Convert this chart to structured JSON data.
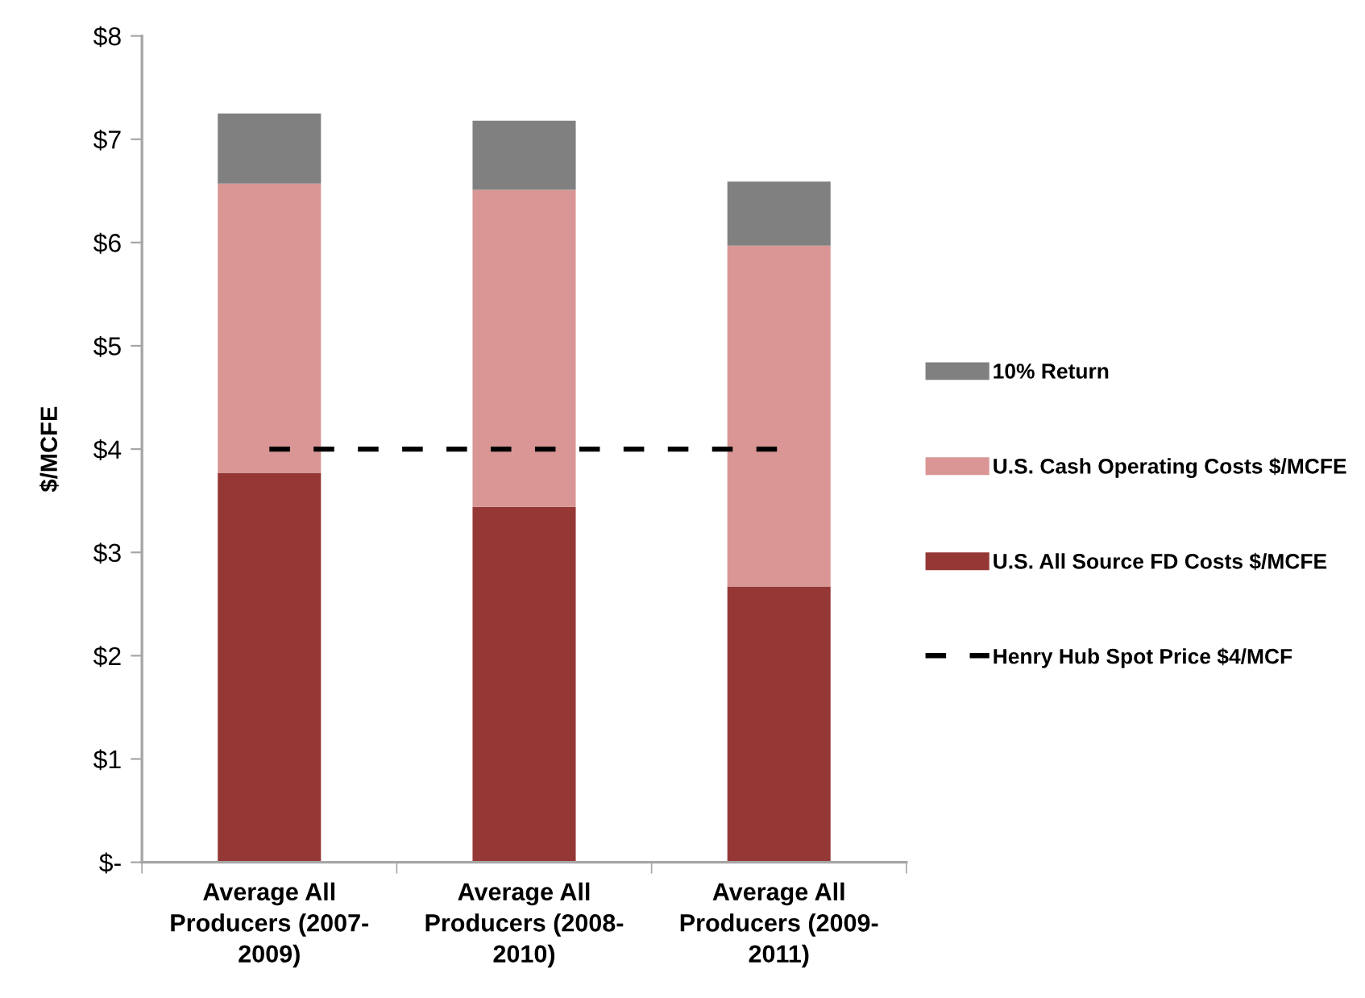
{
  "chart_data": {
    "type": "bar",
    "stacked": true,
    "categories": [
      "Average All\nProducers (2007-\n2009)",
      "Average All\nProducers (2008-\n2010)",
      "Average All\nProducers (2009-\n2011)"
    ],
    "ylabel": "$/MCFE",
    "ylim": [
      0,
      8
    ],
    "yticks": [
      {
        "value": 0,
        "label": "$-"
      },
      {
        "value": 1,
        "label": "$1"
      },
      {
        "value": 2,
        "label": "$2"
      },
      {
        "value": 3,
        "label": "$3"
      },
      {
        "value": 4,
        "label": "$4"
      },
      {
        "value": 5,
        "label": "$5"
      },
      {
        "value": 6,
        "label": "$6"
      },
      {
        "value": 7,
        "label": "$7"
      },
      {
        "value": 8,
        "label": "$8"
      }
    ],
    "series": [
      {
        "name": "U.S. All Source FD Costs $/MCFE",
        "color": "#953735",
        "values": [
          3.77,
          3.44,
          2.67
        ]
      },
      {
        "name": "U.S. Cash Operating Costs $/MCFE",
        "color": "#d99694",
        "values": [
          2.8,
          3.07,
          3.3
        ]
      },
      {
        "name": "10% Return",
        "color": "#808080",
        "values": [
          0.68,
          0.67,
          0.62
        ]
      },
      {
        "name": "Henry Hub Spot Price $4/MCF",
        "type": "line",
        "color": "#000000",
        "line_style": "dashed",
        "values": [
          4,
          4,
          4
        ]
      }
    ],
    "legend": "right"
  }
}
